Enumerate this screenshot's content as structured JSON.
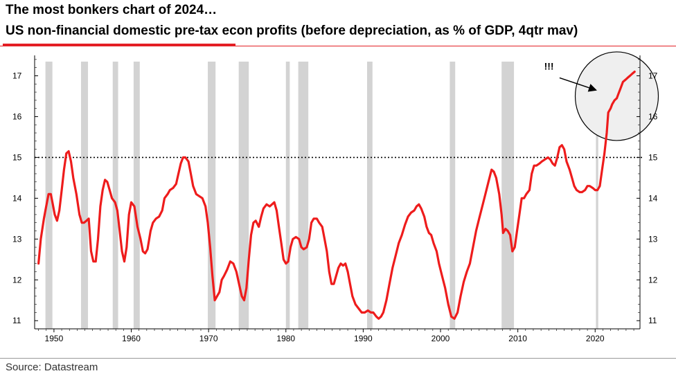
{
  "header": {
    "title": "The most bonkers chart of 2024…",
    "subtitle": "US non-financial domestic pre-tax econ profits (before depreciation, as % of GDP, 4qtr mav)"
  },
  "footer": {
    "source": "Source: Datastream"
  },
  "colors": {
    "accent": "#e31e24",
    "line": "#ee1c1c",
    "recession": "#d3d3d3",
    "circle_fill": "#efefef"
  },
  "chart_data": {
    "type": "line",
    "title": "US non-financial domestic pre-tax econ profits (before depreciation, as % of GDP, 4qtr mav)",
    "xlabel": "",
    "ylabel": "",
    "xlim": [
      1947.5,
      2025.8
    ],
    "ylim": [
      10.8,
      17.5
    ],
    "x_ticks": [
      1950,
      1960,
      1970,
      1980,
      1990,
      2000,
      2010,
      2020
    ],
    "y_ticks": [
      11,
      12,
      13,
      14,
      15,
      16,
      17
    ],
    "y_tick_sides": [
      "left",
      "right"
    ],
    "reference_line": {
      "y": 15,
      "style": "dotted"
    },
    "annotation": "!!!",
    "grid": false,
    "recessions": [
      [
        1948.9,
        1949.8
      ],
      [
        1953.5,
        1954.4
      ],
      [
        1957.6,
        1958.3
      ],
      [
        1960.3,
        1961.1
      ],
      [
        1969.9,
        1970.9
      ],
      [
        1973.9,
        1975.2
      ],
      [
        1980.0,
        1980.5
      ],
      [
        1981.6,
        1982.9
      ],
      [
        1990.5,
        1991.2
      ],
      [
        2001.2,
        2001.9
      ],
      [
        2007.9,
        2009.5
      ],
      [
        2020.1,
        2020.4
      ]
    ],
    "series": [
      {
        "values": [
          [
            1948.0,
            12.4
          ],
          [
            1948.3,
            13.0
          ],
          [
            1948.7,
            13.5
          ],
          [
            1949.0,
            13.8
          ],
          [
            1949.3,
            14.1
          ],
          [
            1949.6,
            14.1
          ],
          [
            1949.9,
            13.8
          ],
          [
            1950.1,
            13.6
          ],
          [
            1950.4,
            13.45
          ],
          [
            1950.7,
            13.7
          ],
          [
            1951.0,
            14.2
          ],
          [
            1951.3,
            14.7
          ],
          [
            1951.6,
            15.1
          ],
          [
            1951.9,
            15.15
          ],
          [
            1952.2,
            14.9
          ],
          [
            1952.5,
            14.5
          ],
          [
            1952.9,
            14.1
          ],
          [
            1953.3,
            13.6
          ],
          [
            1953.6,
            13.4
          ],
          [
            1953.9,
            13.4
          ],
          [
            1954.2,
            13.45
          ],
          [
            1954.5,
            13.5
          ],
          [
            1954.8,
            12.7
          ],
          [
            1955.1,
            12.45
          ],
          [
            1955.4,
            12.45
          ],
          [
            1955.7,
            13.0
          ],
          [
            1956.0,
            13.8
          ],
          [
            1956.3,
            14.2
          ],
          [
            1956.6,
            14.45
          ],
          [
            1956.9,
            14.4
          ],
          [
            1957.2,
            14.2
          ],
          [
            1957.5,
            14.0
          ],
          [
            1957.9,
            13.9
          ],
          [
            1958.2,
            13.7
          ],
          [
            1958.5,
            13.2
          ],
          [
            1958.8,
            12.7
          ],
          [
            1959.1,
            12.45
          ],
          [
            1959.4,
            12.8
          ],
          [
            1959.7,
            13.6
          ],
          [
            1960.0,
            13.9
          ],
          [
            1960.4,
            13.8
          ],
          [
            1960.8,
            13.3
          ],
          [
            1961.2,
            13.0
          ],
          [
            1961.5,
            12.7
          ],
          [
            1961.8,
            12.65
          ],
          [
            1962.1,
            12.75
          ],
          [
            1962.5,
            13.2
          ],
          [
            1962.8,
            13.4
          ],
          [
            1963.2,
            13.5
          ],
          [
            1963.6,
            13.55
          ],
          [
            1964.0,
            13.7
          ],
          [
            1964.3,
            14.0
          ],
          [
            1964.7,
            14.1
          ],
          [
            1965.0,
            14.2
          ],
          [
            1965.4,
            14.25
          ],
          [
            1965.8,
            14.35
          ],
          [
            1966.1,
            14.6
          ],
          [
            1966.4,
            14.85
          ],
          [
            1966.7,
            15.0
          ],
          [
            1967.0,
            15.0
          ],
          [
            1967.4,
            14.9
          ],
          [
            1967.7,
            14.6
          ],
          [
            1968.0,
            14.3
          ],
          [
            1968.4,
            14.1
          ],
          [
            1968.8,
            14.05
          ],
          [
            1969.2,
            14.0
          ],
          [
            1969.6,
            13.8
          ],
          [
            1969.9,
            13.4
          ],
          [
            1970.2,
            12.8
          ],
          [
            1970.5,
            12.1
          ],
          [
            1970.8,
            11.5
          ],
          [
            1971.1,
            11.6
          ],
          [
            1971.4,
            11.7
          ],
          [
            1971.7,
            12.0
          ],
          [
            1972.0,
            12.1
          ],
          [
            1972.4,
            12.25
          ],
          [
            1972.8,
            12.45
          ],
          [
            1973.2,
            12.4
          ],
          [
            1973.6,
            12.2
          ],
          [
            1974.0,
            11.85
          ],
          [
            1974.3,
            11.6
          ],
          [
            1974.6,
            11.5
          ],
          [
            1974.9,
            11.8
          ],
          [
            1975.2,
            12.5
          ],
          [
            1975.5,
            13.1
          ],
          [
            1975.8,
            13.4
          ],
          [
            1976.1,
            13.45
          ],
          [
            1976.5,
            13.3
          ],
          [
            1976.8,
            13.55
          ],
          [
            1977.1,
            13.75
          ],
          [
            1977.5,
            13.85
          ],
          [
            1977.9,
            13.8
          ],
          [
            1978.2,
            13.85
          ],
          [
            1978.5,
            13.9
          ],
          [
            1978.8,
            13.7
          ],
          [
            1979.1,
            13.3
          ],
          [
            1979.4,
            12.9
          ],
          [
            1979.7,
            12.5
          ],
          [
            1980.0,
            12.4
          ],
          [
            1980.3,
            12.45
          ],
          [
            1980.6,
            12.8
          ],
          [
            1980.9,
            13.0
          ],
          [
            1981.3,
            13.05
          ],
          [
            1981.7,
            13.0
          ],
          [
            1982.0,
            12.8
          ],
          [
            1982.3,
            12.75
          ],
          [
            1982.7,
            12.8
          ],
          [
            1983.0,
            13.0
          ],
          [
            1983.3,
            13.4
          ],
          [
            1983.6,
            13.5
          ],
          [
            1984.0,
            13.5
          ],
          [
            1984.3,
            13.4
          ],
          [
            1984.7,
            13.3
          ],
          [
            1985.0,
            13.0
          ],
          [
            1985.3,
            12.7
          ],
          [
            1985.6,
            12.2
          ],
          [
            1985.9,
            11.9
          ],
          [
            1986.2,
            11.9
          ],
          [
            1986.5,
            12.1
          ],
          [
            1986.8,
            12.3
          ],
          [
            1987.1,
            12.4
          ],
          [
            1987.4,
            12.35
          ],
          [
            1987.7,
            12.4
          ],
          [
            1988.0,
            12.2
          ],
          [
            1988.3,
            11.9
          ],
          [
            1988.6,
            11.6
          ],
          [
            1989.0,
            11.4
          ],
          [
            1989.4,
            11.3
          ],
          [
            1989.8,
            11.2
          ],
          [
            1990.2,
            11.2
          ],
          [
            1990.6,
            11.25
          ],
          [
            1991.0,
            11.2
          ],
          [
            1991.3,
            11.2
          ],
          [
            1991.7,
            11.1
          ],
          [
            1992.0,
            11.05
          ],
          [
            1992.3,
            11.1
          ],
          [
            1992.6,
            11.2
          ],
          [
            1993.0,
            11.5
          ],
          [
            1993.4,
            11.9
          ],
          [
            1993.8,
            12.3
          ],
          [
            1994.2,
            12.6
          ],
          [
            1994.6,
            12.9
          ],
          [
            1995.0,
            13.1
          ],
          [
            1995.4,
            13.35
          ],
          [
            1995.8,
            13.55
          ],
          [
            1996.2,
            13.65
          ],
          [
            1996.6,
            13.7
          ],
          [
            1996.9,
            13.8
          ],
          [
            1997.2,
            13.85
          ],
          [
            1997.5,
            13.75
          ],
          [
            1997.9,
            13.55
          ],
          [
            1998.2,
            13.3
          ],
          [
            1998.5,
            13.15
          ],
          [
            1998.8,
            13.1
          ],
          [
            1999.1,
            12.9
          ],
          [
            1999.5,
            12.7
          ],
          [
            1999.8,
            12.4
          ],
          [
            2000.2,
            12.1
          ],
          [
            2000.6,
            11.8
          ],
          [
            2001.0,
            11.4
          ],
          [
            2001.4,
            11.1
          ],
          [
            2001.8,
            11.05
          ],
          [
            2002.2,
            11.2
          ],
          [
            2002.6,
            11.6
          ],
          [
            2003.0,
            11.95
          ],
          [
            2003.4,
            12.2
          ],
          [
            2003.8,
            12.4
          ],
          [
            2004.2,
            12.8
          ],
          [
            2004.6,
            13.2
          ],
          [
            2005.0,
            13.5
          ],
          [
            2005.4,
            13.8
          ],
          [
            2005.8,
            14.1
          ],
          [
            2006.2,
            14.4
          ],
          [
            2006.6,
            14.7
          ],
          [
            2006.9,
            14.65
          ],
          [
            2007.2,
            14.5
          ],
          [
            2007.6,
            14.1
          ],
          [
            2007.9,
            13.6
          ],
          [
            2008.1,
            13.15
          ],
          [
            2008.4,
            13.25
          ],
          [
            2008.7,
            13.2
          ],
          [
            2009.0,
            13.1
          ],
          [
            2009.3,
            12.7
          ],
          [
            2009.6,
            12.8
          ],
          [
            2009.9,
            13.2
          ],
          [
            2010.2,
            13.6
          ],
          [
            2010.5,
            14.0
          ],
          [
            2010.8,
            14.0
          ],
          [
            2011.1,
            14.1
          ],
          [
            2011.5,
            14.2
          ],
          [
            2011.8,
            14.6
          ],
          [
            2012.1,
            14.8
          ],
          [
            2012.4,
            14.8
          ],
          [
            2012.8,
            14.85
          ],
          [
            2013.1,
            14.9
          ],
          [
            2013.5,
            14.95
          ],
          [
            2013.9,
            15.0
          ],
          [
            2014.2,
            14.95
          ],
          [
            2014.5,
            14.85
          ],
          [
            2014.8,
            14.8
          ],
          [
            2015.1,
            15.0
          ],
          [
            2015.4,
            15.25
          ],
          [
            2015.7,
            15.3
          ],
          [
            2016.0,
            15.2
          ],
          [
            2016.3,
            14.9
          ],
          [
            2016.7,
            14.7
          ],
          [
            2017.0,
            14.5
          ],
          [
            2017.3,
            14.3
          ],
          [
            2017.6,
            14.2
          ],
          [
            2018.0,
            14.15
          ],
          [
            2018.3,
            14.15
          ],
          [
            2018.7,
            14.2
          ],
          [
            2019.0,
            14.3
          ],
          [
            2019.3,
            14.3
          ],
          [
            2019.7,
            14.25
          ],
          [
            2020.0,
            14.2
          ],
          [
            2020.3,
            14.2
          ],
          [
            2020.6,
            14.3
          ],
          [
            2020.9,
            14.7
          ],
          [
            2021.2,
            15.1
          ],
          [
            2021.5,
            15.6
          ],
          [
            2021.7,
            16.1
          ],
          [
            2022.0,
            16.2
          ],
          [
            2022.2,
            16.3
          ],
          [
            2022.5,
            16.4
          ],
          [
            2022.8,
            16.45
          ],
          [
            2023.0,
            16.55
          ],
          [
            2023.3,
            16.7
          ],
          [
            2023.6,
            16.85
          ],
          [
            2023.9,
            16.9
          ],
          [
            2024.2,
            16.95
          ],
          [
            2024.5,
            17.0
          ],
          [
            2024.8,
            17.05
          ],
          [
            2025.1,
            17.1
          ]
        ]
      }
    ]
  }
}
